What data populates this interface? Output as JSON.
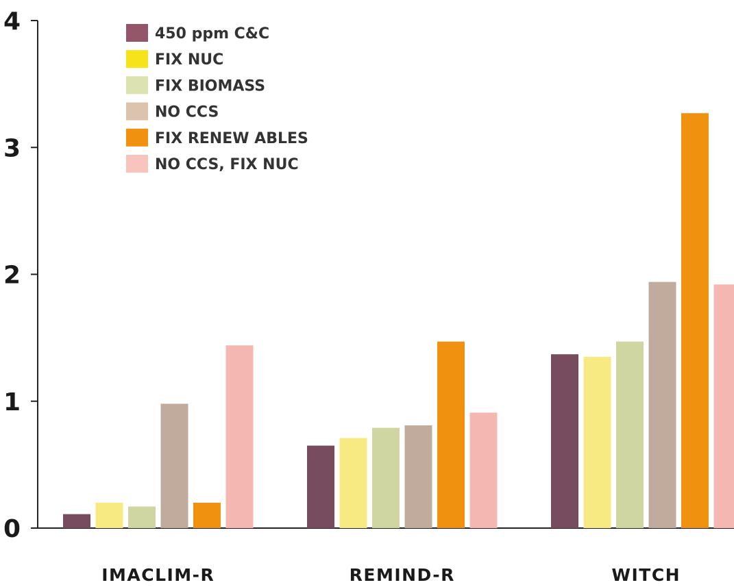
{
  "chart_data": {
    "type": "bar",
    "title": "",
    "xlabel": "",
    "ylabel": "",
    "ylim": [
      0,
      4
    ],
    "yticks": [
      0,
      1,
      2,
      3,
      4
    ],
    "grid": false,
    "legend_position": "top-left",
    "categories": [
      "IMACLIM-R",
      "REMIND-R",
      "WITCH"
    ],
    "series": [
      {
        "name": "450 ppm C&C",
        "color": "#774c5f",
        "values": [
          0.11,
          0.65,
          1.37
        ]
      },
      {
        "name": "FIX NUC",
        "color": "#f7ea82",
        "values": [
          0.2,
          0.71,
          1.35
        ]
      },
      {
        "name": "FIX BIOMASS",
        "color": "#cfd6a2",
        "values": [
          0.17,
          0.79,
          1.47
        ]
      },
      {
        "name": "NO CCS",
        "color": "#c1ab9c",
        "values": [
          0.98,
          0.81,
          1.94
        ]
      },
      {
        "name": "FIX RENEW ABLES",
        "color": "#f0920f",
        "values": [
          0.2,
          1.47,
          3.27
        ]
      },
      {
        "name": "NO CCS, FIX NUC",
        "color": "#f5b7b1",
        "values": [
          1.44,
          0.91,
          1.92
        ]
      }
    ],
    "legend_swatch_colors": [
      "#94576a",
      "#f7e31c",
      "#dde2b2",
      "#dcc3ae",
      "#f0920f",
      "#f7c4be"
    ]
  }
}
